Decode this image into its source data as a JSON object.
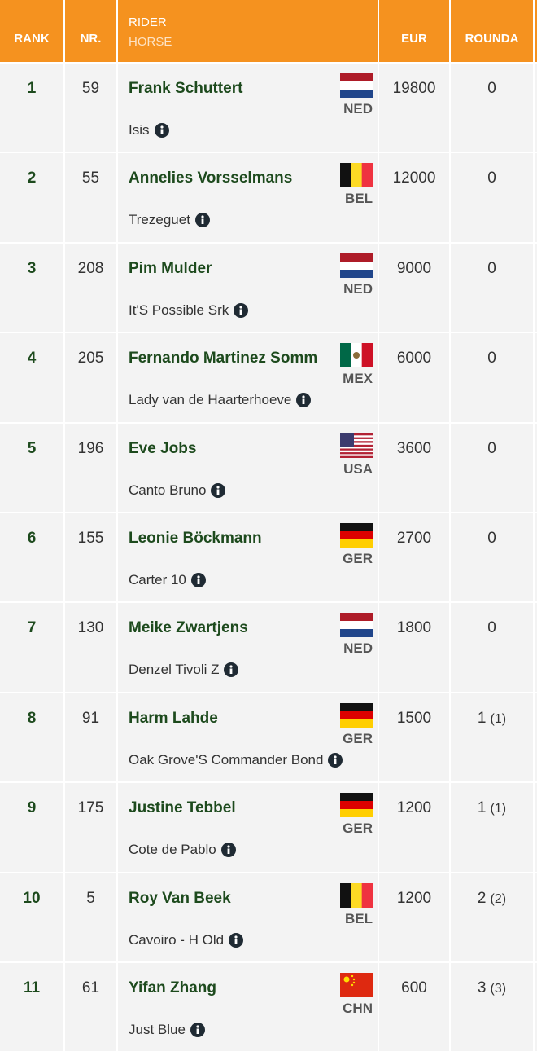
{
  "header": {
    "rank": "RANK",
    "nr": "NR.",
    "rider": "RIDER",
    "horse": "HORSE",
    "eur": "EUR",
    "rounda": "ROUNDA"
  },
  "table": {
    "rows": [
      {
        "rank": 1,
        "nr": 59,
        "rider": "Frank Schuttert",
        "horse": "Isis",
        "country": "NED",
        "eur": 19800,
        "rounda": "0"
      },
      {
        "rank": 2,
        "nr": 55,
        "rider": "Annelies Vorsselmans",
        "horse": "Trezeguet",
        "country": "BEL",
        "eur": 12000,
        "rounda": "0"
      },
      {
        "rank": 3,
        "nr": 208,
        "rider": "Pim Mulder",
        "horse": "It'S Possible Srk",
        "country": "NED",
        "eur": 9000,
        "rounda": "0"
      },
      {
        "rank": 4,
        "nr": 205,
        "rider": "Fernando Martinez Somm",
        "horse": "Lady van de Haarterhoeve",
        "country": "MEX",
        "eur": 6000,
        "rounda": "0"
      },
      {
        "rank": 5,
        "nr": 196,
        "rider": "Eve Jobs",
        "horse": "Canto Bruno",
        "country": "USA",
        "eur": 3600,
        "rounda": "0"
      },
      {
        "rank": 6,
        "nr": 155,
        "rider": "Leonie Böckmann",
        "horse": "Carter 10",
        "country": "GER",
        "eur": 2700,
        "rounda": "0"
      },
      {
        "rank": 7,
        "nr": 130,
        "rider": "Meike Zwartjens",
        "horse": "Denzel Tivoli Z",
        "country": "NED",
        "eur": 1800,
        "rounda": "0"
      },
      {
        "rank": 8,
        "nr": 91,
        "rider": "Harm Lahde",
        "horse": "Oak Grove'S Commander Bond",
        "country": "GER",
        "eur": 1500,
        "rounda": "1",
        "time": "(1)"
      },
      {
        "rank": 9,
        "nr": 175,
        "rider": "Justine Tebbel",
        "horse": "Cote de Pablo",
        "country": "GER",
        "eur": 1200,
        "rounda": "1",
        "time": "(1)"
      },
      {
        "rank": 10,
        "nr": 5,
        "rider": "Roy Van Beek",
        "horse": "Cavoiro - H Old",
        "country": "BEL",
        "eur": 1200,
        "rounda": "2",
        "time": "(2)"
      },
      {
        "rank": 11,
        "nr": 61,
        "rider": "Yifan Zhang",
        "horse": "Just Blue",
        "country": "CHN",
        "eur": 600,
        "rounda": "3",
        "time": "(3)"
      }
    ]
  }
}
